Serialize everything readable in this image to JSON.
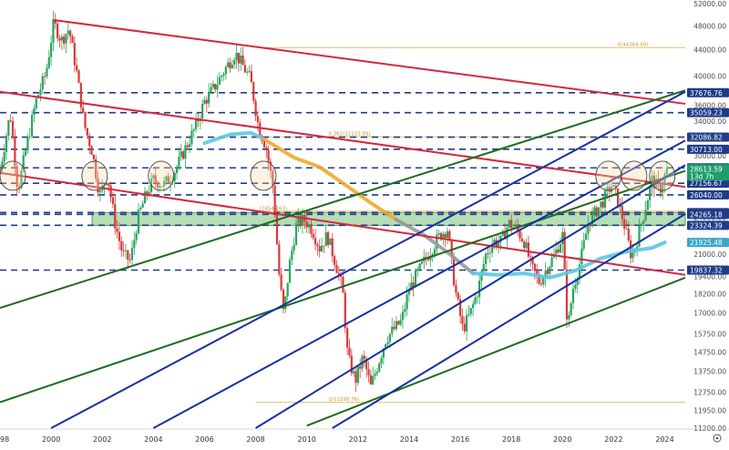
{
  "chart_data": {
    "type": "candlestick",
    "y_scale": "log",
    "ylim": [
      11200,
      52000
    ],
    "xlim": [
      1998,
      2024.8
    ],
    "y_ticks": [
      52000,
      48000,
      44000,
      40000,
      36000,
      34000,
      32000,
      30000,
      28000,
      26000,
      24000,
      22000,
      21000,
      19400,
      18200,
      17000,
      15750,
      14750,
      13750,
      12750,
      11950,
      11200
    ],
    "y_tick_labels": [
      "52000.00",
      "48000.00",
      "44000.00",
      "40000.00",
      "36000.00",
      "34000.00",
      "32000.00",
      "30000.00",
      "28000.00",
      "26000.00",
      "24000.00",
      "22000.00",
      "21000.00",
      "19400.00",
      "18200.00",
      "17000.00",
      "15750.00",
      "14750.00",
      "13750.00",
      "12750.00",
      "11950.00",
      "11200.00"
    ],
    "x_ticks": [
      1998,
      2000,
      2002,
      2004,
      2006,
      2008,
      2010,
      2012,
      2014,
      2016,
      2018,
      2020,
      2022,
      2024
    ],
    "x_tick_labels": [
      "1998",
      "2000",
      "2002",
      "2004",
      "2006",
      "2008",
      "2010",
      "2012",
      "2014",
      "2016",
      "2018",
      "2020",
      "2022",
      "2024"
    ],
    "price_path": [
      [
        1998.0,
        28500
      ],
      [
        1998.4,
        35000
      ],
      [
        1998.7,
        26500
      ],
      [
        1999.0,
        30500
      ],
      [
        1999.4,
        36500
      ],
      [
        1999.8,
        40500
      ],
      [
        2000.1,
        48500
      ],
      [
        2000.4,
        45500
      ],
      [
        2000.7,
        47500
      ],
      [
        2001.0,
        40500
      ],
      [
        2001.3,
        33500
      ],
      [
        2001.6,
        30500
      ],
      [
        2001.9,
        26000
      ],
      [
        2002.2,
        28000
      ],
      [
        2002.5,
        23500
      ],
      [
        2002.8,
        21000
      ],
      [
        2003.1,
        20500
      ],
      [
        2003.4,
        24000
      ],
      [
        2003.7,
        26000
      ],
      [
        2004.0,
        27500
      ],
      [
        2004.4,
        27000
      ],
      [
        2004.8,
        28200
      ],
      [
        2005.2,
        30500
      ],
      [
        2005.6,
        33000
      ],
      [
        2006.0,
        36500
      ],
      [
        2006.4,
        38500
      ],
      [
        2006.8,
        41000
      ],
      [
        2007.2,
        43500
      ],
      [
        2007.5,
        41500
      ],
      [
        2007.8,
        39500
      ],
      [
        2008.1,
        33500
      ],
      [
        2008.4,
        31000
      ],
      [
        2008.7,
        26500
      ],
      [
        2008.9,
        19800
      ],
      [
        2009.1,
        16800
      ],
      [
        2009.3,
        20000
      ],
      [
        2009.6,
        23500
      ],
      [
        2009.9,
        23800
      ],
      [
        2010.2,
        23000
      ],
      [
        2010.5,
        21500
      ],
      [
        2010.8,
        22500
      ],
      [
        2011.1,
        20500
      ],
      [
        2011.4,
        18500
      ],
      [
        2011.6,
        14500
      ],
      [
        2011.9,
        13300
      ],
      [
        2012.2,
        14500
      ],
      [
        2012.5,
        13000
      ],
      [
        2012.8,
        14200
      ],
      [
        2013.1,
        15500
      ],
      [
        2013.4,
        16000
      ],
      [
        2013.7,
        16500
      ],
      [
        2014.0,
        18500
      ],
      [
        2014.3,
        19500
      ],
      [
        2014.6,
        20500
      ],
      [
        2014.9,
        21500
      ],
      [
        2015.2,
        22500
      ],
      [
        2015.5,
        23000
      ],
      [
        2015.8,
        18500
      ],
      [
        2016.1,
        16000
      ],
      [
        2016.4,
        17000
      ],
      [
        2016.7,
        18500
      ],
      [
        2017.0,
        21000
      ],
      [
        2017.3,
        22000
      ],
      [
        2017.6,
        22000
      ],
      [
        2017.9,
        23500
      ],
      [
        2018.2,
        23000
      ],
      [
        2018.5,
        22000
      ],
      [
        2018.8,
        20000
      ],
      [
        2019.1,
        19000
      ],
      [
        2019.4,
        20000
      ],
      [
        2019.7,
        21000
      ],
      [
        2020.0,
        22500
      ],
      [
        2020.2,
        16000
      ],
      [
        2020.4,
        18500
      ],
      [
        2020.7,
        20500
      ],
      [
        2021.0,
        23500
      ],
      [
        2021.3,
        24500
      ],
      [
        2021.6,
        25500
      ],
      [
        2021.9,
        27000
      ],
      [
        2022.1,
        26000
      ],
      [
        2022.4,
        23500
      ],
      [
        2022.7,
        20800
      ],
      [
        2022.9,
        22000
      ],
      [
        2023.2,
        24500
      ],
      [
        2023.5,
        27500
      ],
      [
        2023.8,
        26500
      ],
      [
        2024.1,
        28613.59
      ]
    ],
    "horizontal_levels": [
      {
        "value": 37676.76,
        "label": "37676.76",
        "color": "#1f3c88"
      },
      {
        "value": 35059.23,
        "label": "35059.23",
        "color": "#1f3c88"
      },
      {
        "value": 32086.82,
        "label": "32086.82",
        "color": "#1f3c88"
      },
      {
        "value": 30713.0,
        "label": "30713.00",
        "color": "#1f3c88"
      },
      {
        "value": 28713.0,
        "label": "28713.00",
        "color": "#1f3c88"
      },
      {
        "value": 27156.67,
        "label": "27156.67",
        "color": "#1f3c88"
      },
      {
        "value": 26040.0,
        "label": "26040.00",
        "color": "#1f3c88"
      },
      {
        "value": 24427.42,
        "label": "24427.42",
        "color": "#1f3c88"
      },
      {
        "value": 24265.18,
        "label": "24265.18",
        "color": "#1f3c88"
      },
      {
        "value": 23324.39,
        "label": "23324.39",
        "color": "#1f3c88"
      },
      {
        "value": 19837.32,
        "label": "19837.32",
        "color": "#1f3c88"
      }
    ],
    "current_price": {
      "value": 28613.59,
      "label": "28613.59",
      "countdown": "13d 7h",
      "color": "#1e9e6a"
    },
    "ma_badge": {
      "value": 21925.48,
      "label": "21925.48",
      "color": "#3aa8c8"
    },
    "fib_levels": [
      {
        "value": 44364.0,
        "label": "0(44364.00)"
      },
      {
        "value": 32133.93,
        "label": "0.382(32133.93)"
      },
      {
        "value": 24545.63,
        "label": "(24545.63)"
      },
      {
        "value": 12295.76,
        "label": "1(12295.76)"
      }
    ],
    "zone": {
      "y_low": 23324.39,
      "y_high": 24427.42,
      "color": "#9ed19e"
    },
    "trendlines": [
      {
        "color": "#d7263d",
        "points": [
          [
            2000.1,
            49000
          ],
          [
            2024.8,
            36200
          ]
        ]
      },
      {
        "color": "#d7263d",
        "points": [
          [
            1998.0,
            37800
          ],
          [
            2024.8,
            26800
          ]
        ]
      },
      {
        "color": "#d7263d",
        "points": [
          [
            1998.0,
            28200
          ],
          [
            2024.8,
            19500
          ]
        ]
      },
      {
        "color": "#1e6b1e",
        "points": [
          [
            1998.0,
            17300
          ],
          [
            2024.8,
            38000
          ]
        ]
      },
      {
        "color": "#1e6b1e",
        "points": [
          [
            1998.0,
            12300
          ],
          [
            2024.8,
            28400
          ]
        ]
      },
      {
        "color": "#1e6b1e",
        "points": [
          [
            2010.0,
            11300
          ],
          [
            2024.8,
            19300
          ]
        ]
      },
      {
        "color": "#1530a0",
        "points": [
          [
            2000.0,
            11200
          ],
          [
            2024.8,
            37800
          ]
        ]
      },
      {
        "color": "#1530a0",
        "points": [
          [
            2004.0,
            11200
          ],
          [
            2024.8,
            31700
          ]
        ]
      },
      {
        "color": "#1530a0",
        "points": [
          [
            2008.0,
            11200
          ],
          [
            2024.8,
            29000
          ]
        ]
      },
      {
        "color": "#1530a0",
        "points": [
          [
            2011.0,
            11200
          ],
          [
            2024.8,
            24300
          ]
        ]
      }
    ],
    "moving_averages": [
      {
        "color": "#5bc8e0",
        "points": [
          [
            2006.0,
            31400
          ],
          [
            2007.0,
            32400
          ],
          [
            2007.8,
            32600
          ],
          [
            2008.3,
            31900
          ]
        ]
      },
      {
        "color": "#f0a830",
        "points": [
          [
            2008.3,
            31900
          ],
          [
            2009.5,
            29800
          ],
          [
            2010.5,
            28800
          ],
          [
            2011.5,
            27000
          ],
          [
            2012.5,
            25300
          ],
          [
            2013.5,
            23800
          ]
        ]
      },
      {
        "color": "#999999",
        "points": [
          [
            2013.5,
            23800
          ],
          [
            2014.6,
            22500
          ],
          [
            2015.6,
            21000
          ],
          [
            2016.5,
            19600
          ]
        ]
      },
      {
        "color": "#5bc8e0",
        "points": [
          [
            2016.5,
            19600
          ],
          [
            2017.5,
            19500
          ],
          [
            2018.5,
            19600
          ],
          [
            2019.5,
            19300
          ],
          [
            2020.5,
            19800
          ],
          [
            2021.5,
            20700
          ],
          [
            2022.5,
            21200
          ],
          [
            2023.5,
            21500
          ],
          [
            2024.0,
            21925.48
          ]
        ]
      }
    ],
    "circled_years": [
      1998.5,
      2001.7,
      2004.3,
      2008.3,
      2021.8,
      2022.8,
      2023.9
    ],
    "grid": false
  }
}
